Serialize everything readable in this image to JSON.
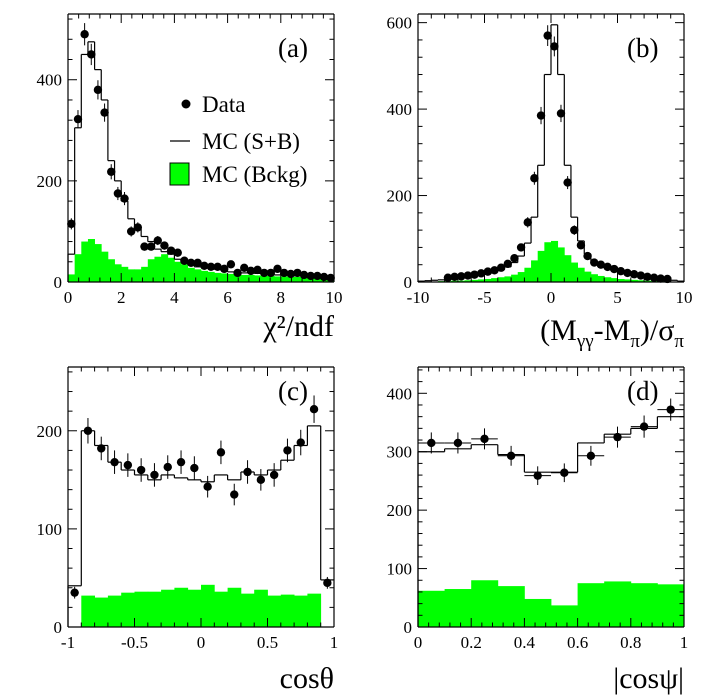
{
  "legend": {
    "data_label": "Data",
    "mc_sb_label": "MC (S+B)",
    "mc_bckg_label": "MC (Bckg)"
  },
  "colors": {
    "background_fill": "#00ff00",
    "axes": "#000000"
  },
  "chart_data": [
    {
      "id": "a",
      "type": "histogram",
      "panel_label": "(a)",
      "xlabel": "χ²/ndf",
      "xlim": [
        0,
        10
      ],
      "ylim": [
        0,
        530
      ],
      "xticks": [
        0,
        2,
        4,
        6,
        8,
        10
      ],
      "yticks": [
        0,
        200,
        400
      ],
      "edges": [
        0,
        0.25,
        0.5,
        0.75,
        1,
        1.25,
        1.5,
        1.75,
        2,
        2.25,
        2.5,
        2.75,
        3,
        3.25,
        3.5,
        3.75,
        4,
        4.25,
        4.5,
        4.75,
        5,
        5.25,
        5.5,
        5.75,
        6,
        6.25,
        6.5,
        6.75,
        7,
        7.25,
        7.5,
        7.75,
        8,
        8.25,
        8.5,
        8.75,
        9,
        9.25,
        9.5,
        9.75,
        10
      ],
      "series": [
        {
          "name": "MC (S+B)",
          "style": "step",
          "values": [
            55,
            305,
            450,
            475,
            420,
            360,
            240,
            200,
            160,
            125,
            105,
            90,
            80,
            65,
            60,
            55,
            45,
            40,
            35,
            30,
            30,
            28,
            25,
            22,
            20,
            20,
            18,
            18,
            17,
            16,
            15,
            14,
            14,
            13,
            12,
            12,
            11,
            10,
            10,
            9
          ]
        },
        {
          "name": "MC (Bckg)",
          "style": "filled",
          "values": [
            15,
            55,
            80,
            85,
            75,
            60,
            45,
            35,
            30,
            25,
            25,
            30,
            45,
            50,
            55,
            48,
            40,
            35,
            28,
            25,
            22,
            20,
            18,
            17,
            16,
            15,
            14,
            14,
            13,
            12,
            12,
            11,
            11,
            10,
            10,
            9,
            9,
            9,
            8,
            8
          ]
        }
      ],
      "points": {
        "name": "Data",
        "x": [
          0.125,
          0.375,
          0.625,
          0.875,
          1.125,
          1.375,
          1.625,
          1.875,
          2.125,
          2.375,
          2.625,
          2.875,
          3.125,
          3.375,
          3.625,
          3.875,
          4.125,
          4.375,
          4.625,
          4.875,
          5.125,
          5.375,
          5.625,
          5.875,
          6.125,
          6.375,
          6.625,
          6.875,
          7.125,
          7.375,
          7.625,
          7.875,
          8.125,
          8.375,
          8.625,
          8.875,
          9.125,
          9.375,
          9.625,
          9.875
        ],
        "y": [
          115,
          322,
          490,
          450,
          380,
          335,
          218,
          175,
          165,
          100,
          108,
          70,
          70,
          82,
          72,
          62,
          58,
          42,
          38,
          38,
          32,
          30,
          30,
          26,
          35,
          18,
          28,
          22,
          24,
          18,
          18,
          26,
          18,
          16,
          18,
          14,
          12,
          12,
          10,
          8
        ],
        "yerr": [
          11,
          18,
          22,
          21,
          19,
          18,
          15,
          13,
          13,
          10,
          10,
          8,
          8,
          9,
          8,
          8,
          8,
          6,
          6,
          6,
          6,
          5,
          5,
          5,
          6,
          4,
          5,
          5,
          5,
          4,
          4,
          5,
          4,
          4,
          4,
          4,
          3,
          3,
          3,
          3
        ]
      }
    },
    {
      "id": "b",
      "type": "histogram",
      "panel_label": "(b)",
      "xlabel_parts": [
        "(M",
        "γγ",
        "-M",
        "π",
        ")/σ",
        "π"
      ],
      "xlim": [
        -10,
        10
      ],
      "ylim": [
        0,
        620
      ],
      "xticks": [
        -10,
        -5,
        0,
        5,
        10
      ],
      "yticks": [
        0,
        200,
        400,
        600
      ],
      "edges": [
        -10,
        -9.5,
        -9,
        -8.5,
        -8,
        -7.5,
        -7,
        -6.5,
        -6,
        -5.5,
        -5,
        -4.5,
        -4,
        -3.5,
        -3,
        -2.5,
        -2,
        -1.5,
        -1,
        -0.5,
        0,
        0.5,
        1,
        1.5,
        2,
        2.5,
        3,
        3.5,
        4,
        4.5,
        5,
        5.5,
        6,
        6.5,
        7,
        7.5,
        8,
        8.5,
        9,
        9.5,
        10
      ],
      "series": [
        {
          "name": "MC (S+B)",
          "style": "step",
          "values": [
            2,
            3,
            4,
            5,
            6,
            8,
            10,
            12,
            14,
            16,
            19,
            24,
            28,
            35,
            45,
            60,
            90,
            150,
            270,
            480,
            595,
            480,
            270,
            150,
            95,
            65,
            48,
            38,
            32,
            26,
            22,
            18,
            16,
            13,
            12,
            10,
            8,
            6,
            4,
            2
          ]
        },
        {
          "name": "MC (Bckg)",
          "style": "filled",
          "values": [
            0,
            1,
            1,
            2,
            2,
            3,
            3,
            4,
            5,
            6,
            7,
            9,
            11,
            13,
            17,
            23,
            33,
            50,
            72,
            92,
            95,
            80,
            62,
            45,
            33,
            24,
            18,
            14,
            11,
            9,
            7,
            6,
            5,
            4,
            3,
            3,
            2,
            2,
            1,
            1
          ]
        }
      ],
      "points": {
        "name": "Data",
        "x": [
          -7.75,
          -7.25,
          -6.75,
          -6.25,
          -5.75,
          -5.25,
          -4.75,
          -4.25,
          -3.75,
          -3.25,
          -2.75,
          -2.25,
          -1.75,
          -1.25,
          -0.75,
          -0.25,
          0.25,
          0.75,
          1.25,
          1.75,
          2.25,
          2.75,
          3.25,
          3.75,
          4.25,
          4.75,
          5.25,
          5.75,
          6.25,
          6.75,
          7.25,
          7.75,
          8.25,
          8.75
        ],
        "y": [
          10,
          12,
          13,
          15,
          17,
          20,
          24,
          27,
          33,
          42,
          55,
          80,
          138,
          240,
          385,
          570,
          545,
          390,
          230,
          120,
          85,
          60,
          45,
          40,
          35,
          30,
          25,
          21,
          18,
          15,
          12,
          10,
          8,
          7
        ],
        "yerr": [
          3,
          3,
          4,
          4,
          4,
          4,
          5,
          5,
          6,
          6,
          7,
          9,
          12,
          15,
          20,
          24,
          23,
          20,
          15,
          11,
          9,
          8,
          7,
          6,
          6,
          5,
          5,
          5,
          4,
          4,
          4,
          3,
          3,
          3
        ]
      }
    },
    {
      "id": "c",
      "type": "histogram",
      "panel_label": "(c)",
      "xlabel": "cosθ",
      "xlim": [
        -1,
        1
      ],
      "ylim": [
        0,
        265
      ],
      "xticks": [
        -1,
        -0.5,
        0,
        0.5,
        1
      ],
      "yticks": [
        0,
        100,
        200
      ],
      "edges": [
        -1,
        -0.9,
        -0.8,
        -0.7,
        -0.6,
        -0.5,
        -0.4,
        -0.3,
        -0.2,
        -0.1,
        0,
        0.1,
        0.2,
        0.3,
        0.4,
        0.5,
        0.6,
        0.7,
        0.8,
        0.9,
        1
      ],
      "series": [
        {
          "name": "MC (S+B)",
          "style": "step",
          "values": [
            42,
            200,
            185,
            168,
            160,
            155,
            150,
            155,
            152,
            150,
            148,
            155,
            150,
            158,
            155,
            160,
            170,
            185,
            205,
            48
          ]
        },
        {
          "name": "MC (Bckg)",
          "style": "filled",
          "values": [
            0,
            32,
            30,
            32,
            35,
            36,
            36,
            38,
            40,
            38,
            43,
            36,
            40,
            34,
            38,
            32,
            33,
            32,
            34,
            0
          ]
        }
      ],
      "points": {
        "name": "Data",
        "x": [
          -0.95,
          -0.85,
          -0.75,
          -0.65,
          -0.55,
          -0.45,
          -0.35,
          -0.25,
          -0.15,
          -0.05,
          0.05,
          0.15,
          0.25,
          0.35,
          0.45,
          0.55,
          0.65,
          0.75,
          0.85,
          0.95
        ],
        "y": [
          35,
          200,
          182,
          168,
          165,
          160,
          155,
          163,
          168,
          162,
          143,
          178,
          135,
          158,
          150,
          155,
          180,
          188,
          222,
          45
        ],
        "yerr": [
          6,
          13,
          12,
          12,
          12,
          12,
          12,
          12,
          12,
          12,
          11,
          12,
          11,
          12,
          11,
          12,
          12,
          13,
          14,
          6
        ]
      }
    },
    {
      "id": "d",
      "type": "histogram",
      "panel_label": "(d)",
      "xlabel": "|cosψ|",
      "xlim": [
        0,
        1
      ],
      "ylim": [
        0,
        445
      ],
      "xticks": [
        0,
        0.2,
        0.4,
        0.6,
        0.8,
        1
      ],
      "yticks": [
        0,
        100,
        200,
        300,
        400
      ],
      "edges": [
        0,
        0.1,
        0.2,
        0.3,
        0.4,
        0.5,
        0.6,
        0.7,
        0.8,
        0.9,
        1
      ],
      "series": [
        {
          "name": "MC (S+B)",
          "style": "step",
          "values": [
            300,
            305,
            312,
            295,
            265,
            265,
            315,
            330,
            340,
            360
          ]
        },
        {
          "name": "MC (Bckg)",
          "style": "filled",
          "values": [
            62,
            65,
            80,
            70,
            48,
            37,
            75,
            78,
            75,
            73
          ]
        }
      ],
      "points": {
        "name": "Data",
        "x": [
          0.05,
          0.15,
          0.25,
          0.35,
          0.45,
          0.55,
          0.65,
          0.75,
          0.85,
          0.95
        ],
        "y": [
          315,
          315,
          322,
          293,
          259,
          264,
          293,
          325,
          343,
          372
        ],
        "yerr": [
          18,
          18,
          18,
          17,
          16,
          16,
          17,
          18,
          19,
          19
        ]
      }
    }
  ]
}
